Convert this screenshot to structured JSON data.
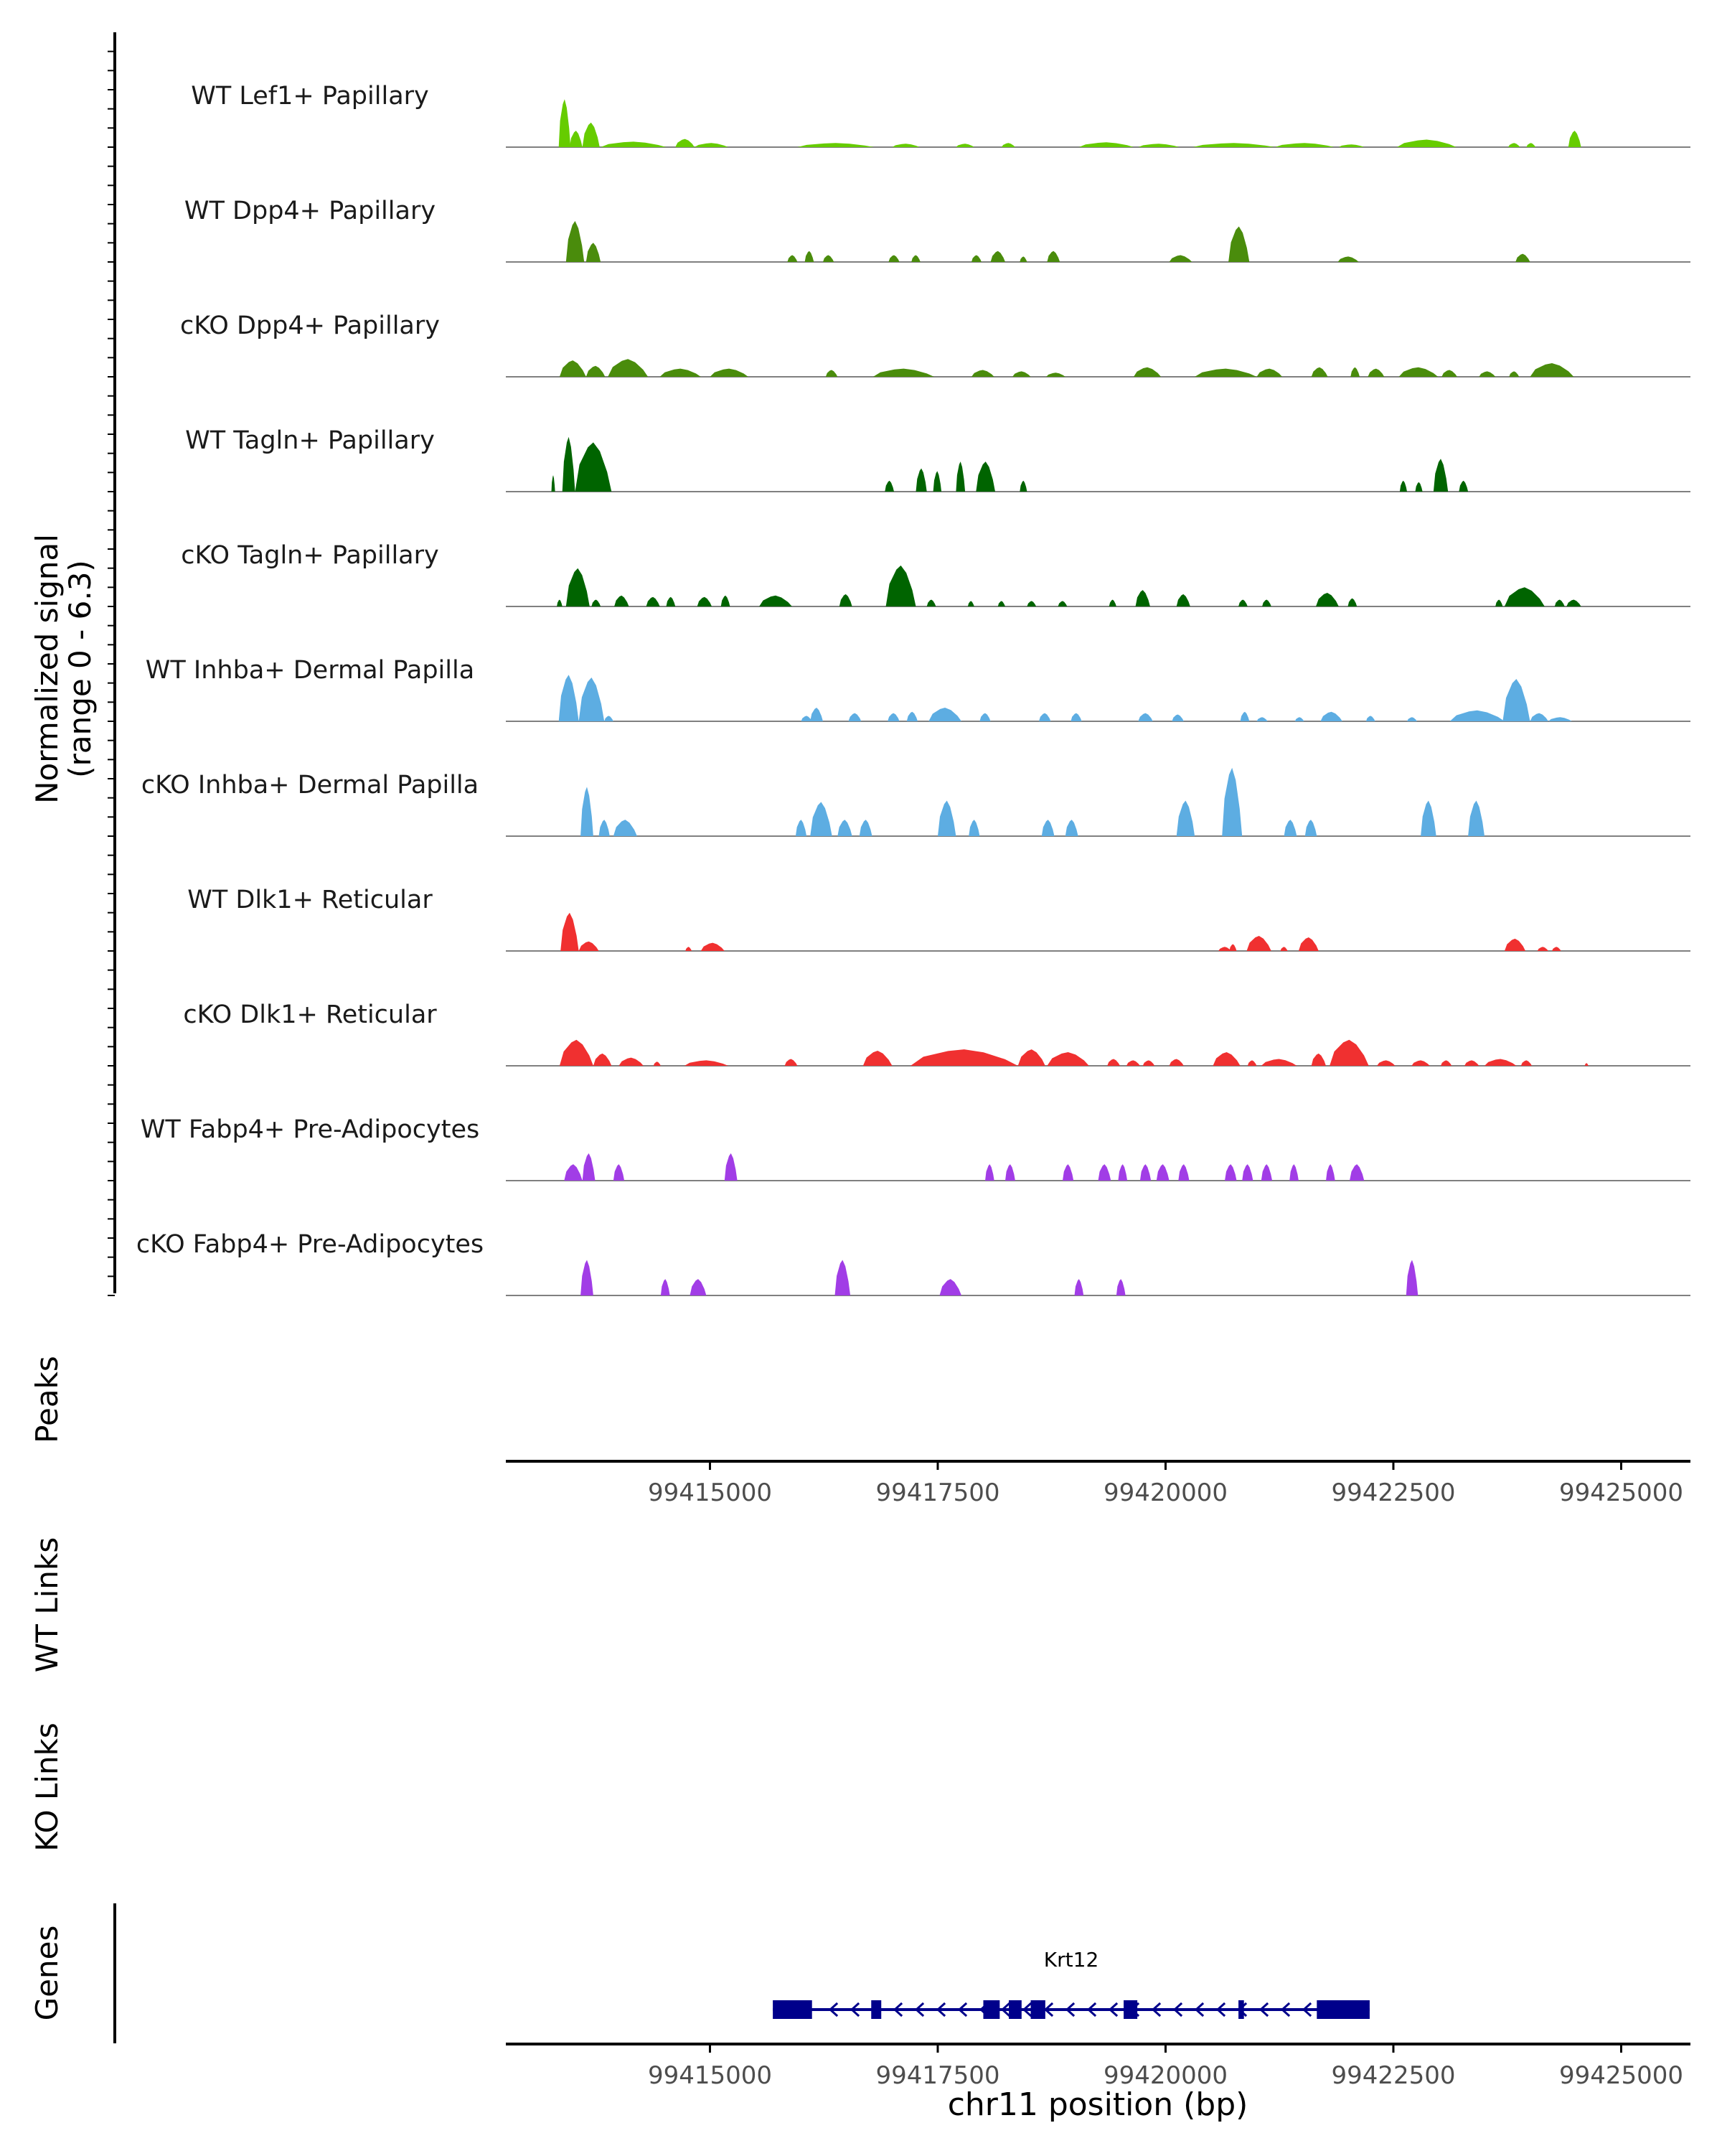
{
  "chart_data": {
    "type": "area",
    "title": "",
    "chromosome": "chr11",
    "xlabel": "chr11 position (bp)",
    "xlim": [
      99412760,
      99425760
    ],
    "x_ticks": [
      "99415000",
      "99417500",
      "99420000",
      "99422500",
      "99425000"
    ],
    "coverage_ylabel": "Normalized signal",
    "coverage_ylabel_range": "(range 0 - 6.3)",
    "ylim": [
      0,
      6.3
    ],
    "tracks": [
      {
        "name": "WT Lef1+ Papillary",
        "color": "#66cc00",
        "peaks": [
          [
            99413340,
            99413470,
            3.5
          ],
          [
            99413460,
            99413600,
            1.2
          ],
          [
            99413600,
            99413790,
            1.8
          ],
          [
            99413800,
            99414520,
            0.4
          ],
          [
            99414620,
            99414830,
            0.6
          ],
          [
            99414830,
            99415200,
            0.3
          ],
          [
            99415960,
            99416800,
            0.3
          ],
          [
            99417000,
            99417300,
            0.25
          ],
          [
            99417700,
            99417900,
            0.25
          ],
          [
            99418200,
            99418350,
            0.3
          ],
          [
            99419050,
            99419650,
            0.35
          ],
          [
            99419700,
            99420150,
            0.25
          ],
          [
            99420300,
            99421200,
            0.3
          ],
          [
            99421200,
            99421850,
            0.3
          ],
          [
            99421900,
            99422180,
            0.2
          ],
          [
            99422540,
            99423190,
            0.55
          ],
          [
            99423760,
            99423890,
            0.3
          ],
          [
            99423960,
            99424060,
            0.3
          ],
          [
            99424420,
            99424560,
            1.2
          ]
        ]
      },
      {
        "name": "WT Dpp4+ Papillary",
        "color": "#4a8c0c",
        "peaks": [
          [
            99413420,
            99413620,
            3.0
          ],
          [
            99413640,
            99413800,
            1.4
          ],
          [
            99415850,
            99415960,
            0.5
          ],
          [
            99416040,
            99416140,
            0.8
          ],
          [
            99416240,
            99416360,
            0.5
          ],
          [
            99416960,
            99417080,
            0.5
          ],
          [
            99417210,
            99417310,
            0.5
          ],
          [
            99417870,
            99417980,
            0.5
          ],
          [
            99418080,
            99418240,
            0.8
          ],
          [
            99418400,
            99418480,
            0.4
          ],
          [
            99418700,
            99418840,
            0.8
          ],
          [
            99420040,
            99420290,
            0.5
          ],
          [
            99420690,
            99420920,
            2.6
          ],
          [
            99421890,
            99422120,
            0.4
          ],
          [
            99423840,
            99424000,
            0.6
          ]
        ]
      },
      {
        "name": "cKO Dpp4+ Papillary",
        "color": "#4a8c0c",
        "peaks": [
          [
            99413350,
            99413640,
            1.2
          ],
          [
            99413640,
            99413850,
            0.8
          ],
          [
            99413880,
            99414320,
            1.3
          ],
          [
            99414450,
            99414900,
            0.6
          ],
          [
            99415000,
            99415420,
            0.6
          ],
          [
            99416270,
            99416400,
            0.5
          ],
          [
            99416790,
            99417460,
            0.6
          ],
          [
            99417870,
            99418120,
            0.5
          ],
          [
            99418320,
            99418520,
            0.4
          ],
          [
            99418690,
            99418900,
            0.3
          ],
          [
            99419650,
            99419950,
            0.7
          ],
          [
            99420320,
            99421000,
            0.6
          ],
          [
            99421000,
            99421280,
            0.6
          ],
          [
            99421600,
            99421780,
            0.7
          ],
          [
            99422030,
            99422130,
            0.7
          ],
          [
            99422220,
            99422400,
            0.6
          ],
          [
            99422560,
            99422990,
            0.7
          ],
          [
            99423030,
            99423200,
            0.5
          ],
          [
            99423440,
            99423620,
            0.4
          ],
          [
            99423770,
            99423880,
            0.4
          ],
          [
            99424000,
            99424480,
            1.0
          ]
        ]
      },
      {
        "name": "WT Tagln+ Papillary",
        "color": "#006400",
        "peaks": [
          [
            99413260,
            99413300,
            1.2
          ],
          [
            99413380,
            99413520,
            4.0
          ],
          [
            99413520,
            99413920,
            3.6
          ],
          [
            99416920,
            99417020,
            0.8
          ],
          [
            99417260,
            99417380,
            1.7
          ],
          [
            99417450,
            99417540,
            1.5
          ],
          [
            99417700,
            99417800,
            2.2
          ],
          [
            99417920,
            99418130,
            2.2
          ],
          [
            99418400,
            99418480,
            0.8
          ],
          [
            99422570,
            99422650,
            0.8
          ],
          [
            99422740,
            99422820,
            0.7
          ],
          [
            99422940,
            99423100,
            2.4
          ],
          [
            99423220,
            99423320,
            0.8
          ]
        ]
      },
      {
        "name": "cKO Tagln+ Papillary",
        "color": "#006400",
        "peaks": [
          [
            99413320,
            99413380,
            0.5
          ],
          [
            99413420,
            99413680,
            2.8
          ],
          [
            99413700,
            99413800,
            0.5
          ],
          [
            99413950,
            99414110,
            0.8
          ],
          [
            99414300,
            99414450,
            0.7
          ],
          [
            99414520,
            99414620,
            0.7
          ],
          [
            99414860,
            99415020,
            0.7
          ],
          [
            99415120,
            99415220,
            0.8
          ],
          [
            99415540,
            99415900,
            0.8
          ],
          [
            99416420,
            99416560,
            0.9
          ],
          [
            99416930,
            99417260,
            3.0
          ],
          [
            99417380,
            99417480,
            0.5
          ],
          [
            99417830,
            99417900,
            0.4
          ],
          [
            99418160,
            99418240,
            0.4
          ],
          [
            99418480,
            99418580,
            0.4
          ],
          [
            99418820,
            99418920,
            0.4
          ],
          [
            99419380,
            99419460,
            0.5
          ],
          [
            99419670,
            99419830,
            1.2
          ],
          [
            99420120,
            99420270,
            0.9
          ],
          [
            99420800,
            99420900,
            0.5
          ],
          [
            99421060,
            99421160,
            0.5
          ],
          [
            99421650,
            99421900,
            1.0
          ],
          [
            99422000,
            99422100,
            0.6
          ],
          [
            99423620,
            99423700,
            0.5
          ],
          [
            99423720,
            99424160,
            1.4
          ],
          [
            99424270,
            99424380,
            0.5
          ],
          [
            99424400,
            99424560,
            0.5
          ]
        ]
      },
      {
        "name": "WT Inhba+ Dermal Papilla",
        "color": "#5dade2",
        "peaks": [
          [
            99413340,
            99413560,
            3.4
          ],
          [
            99413560,
            99413840,
            3.2
          ],
          [
            99413840,
            99413940,
            0.4
          ],
          [
            99416000,
            99416120,
            0.4
          ],
          [
            99416100,
            99416240,
            1.0
          ],
          [
            99416520,
            99416660,
            0.6
          ],
          [
            99416950,
            99417080,
            0.6
          ],
          [
            99417160,
            99417280,
            0.7
          ],
          [
            99417400,
            99417760,
            1.0
          ],
          [
            99417960,
            99418080,
            0.6
          ],
          [
            99418610,
            99418740,
            0.6
          ],
          [
            99418960,
            99419080,
            0.6
          ],
          [
            99419700,
            99419860,
            0.6
          ],
          [
            99420070,
            99420200,
            0.5
          ],
          [
            99420820,
            99420920,
            0.7
          ],
          [
            99421000,
            99421120,
            0.3
          ],
          [
            99421420,
            99421520,
            0.3
          ],
          [
            99421700,
            99421940,
            0.7
          ],
          [
            99422200,
            99422300,
            0.4
          ],
          [
            99422650,
            99422760,
            0.3
          ],
          [
            99423120,
            99423720,
            0.8
          ],
          [
            99423700,
            99424000,
            3.1
          ],
          [
            99424000,
            99424200,
            0.6
          ],
          [
            99424200,
            99424460,
            0.3
          ]
        ]
      },
      {
        "name": "cKO Inhba+ Dermal Papilla",
        "color": "#5dade2",
        "peaks": [
          [
            99413580,
            99413720,
            3.6
          ],
          [
            99413780,
            99413900,
            1.2
          ],
          [
            99413940,
            99414200,
            1.2
          ],
          [
            99415940,
            99416060,
            1.2
          ],
          [
            99416100,
            99416340,
            2.5
          ],
          [
            99416400,
            99416560,
            1.2
          ],
          [
            99416640,
            99416780,
            1.2
          ],
          [
            99417500,
            99417700,
            2.6
          ],
          [
            99417840,
            99417960,
            1.2
          ],
          [
            99418640,
            99418780,
            1.2
          ],
          [
            99418900,
            99419040,
            1.2
          ],
          [
            99420120,
            99420320,
            2.6
          ],
          [
            99420620,
            99420840,
            5.0
          ],
          [
            99421300,
            99421440,
            1.2
          ],
          [
            99421530,
            99421660,
            1.2
          ],
          [
            99422800,
            99422970,
            2.6
          ],
          [
            99423320,
            99423500,
            2.6
          ]
        ]
      },
      {
        "name": "WT Dlk1+ Reticular",
        "color": "#f03030",
        "peaks": [
          [
            99413360,
            99413560,
            2.8
          ],
          [
            99413560,
            99413780,
            0.7
          ],
          [
            99414730,
            99414800,
            0.3
          ],
          [
            99414900,
            99415160,
            0.6
          ],
          [
            99420580,
            99420720,
            0.3
          ],
          [
            99420700,
            99420780,
            0.5
          ],
          [
            99420890,
            99421160,
            1.1
          ],
          [
            99421260,
            99421340,
            0.3
          ],
          [
            99421460,
            99421680,
            1.0
          ],
          [
            99423720,
            99423950,
            0.9
          ],
          [
            99424080,
            99424200,
            0.3
          ],
          [
            99424240,
            99424340,
            0.3
          ]
        ]
      },
      {
        "name": "cKO Dlk1+ Reticular",
        "color": "#f03030",
        "peaks": [
          [
            99413350,
            99413720,
            1.9
          ],
          [
            99413720,
            99413920,
            0.9
          ],
          [
            99414000,
            99414270,
            0.6
          ],
          [
            99414380,
            99414460,
            0.3
          ],
          [
            99414720,
            99415200,
            0.4
          ],
          [
            99415820,
            99415960,
            0.5
          ],
          [
            99416680,
            99417000,
            1.1
          ],
          [
            99417200,
            99418380,
            1.2
          ],
          [
            99418380,
            99418680,
            1.2
          ],
          [
            99418700,
            99419160,
            1.0
          ],
          [
            99419360,
            99419500,
            0.5
          ],
          [
            99419570,
            99419720,
            0.4
          ],
          [
            99419750,
            99419880,
            0.4
          ],
          [
            99420040,
            99420200,
            0.5
          ],
          [
            99420520,
            99420820,
            1.0
          ],
          [
            99420900,
            99421000,
            0.4
          ],
          [
            99421050,
            99421440,
            0.5
          ],
          [
            99421600,
            99421760,
            0.9
          ],
          [
            99421800,
            99422230,
            1.9
          ],
          [
            99422320,
            99422520,
            0.4
          ],
          [
            99422700,
            99422900,
            0.4
          ],
          [
            99423020,
            99423140,
            0.4
          ],
          [
            99423280,
            99423440,
            0.4
          ],
          [
            99423500,
            99423850,
            0.5
          ],
          [
            99423900,
            99424020,
            0.4
          ],
          [
            99424600,
            99424640,
            0.2
          ]
        ]
      },
      {
        "name": "WT Fabp4+ Pre-Adipocytes",
        "color": "#a13de6",
        "peaks": [
          [
            99413400,
            99413600,
            1.2
          ],
          [
            99413600,
            99413740,
            2.0
          ],
          [
            99413940,
            99414060,
            1.2
          ],
          [
            99415160,
            99415300,
            2.0
          ],
          [
            99418020,
            99418120,
            1.2
          ],
          [
            99418240,
            99418350,
            1.2
          ],
          [
            99418870,
            99418990,
            1.2
          ],
          [
            99419260,
            99419400,
            1.2
          ],
          [
            99419480,
            99419580,
            1.2
          ],
          [
            99419720,
            99419840,
            1.2
          ],
          [
            99419900,
            99420040,
            1.2
          ],
          [
            99420140,
            99420260,
            1.2
          ],
          [
            99420650,
            99420780,
            1.2
          ],
          [
            99420840,
            99420960,
            1.2
          ],
          [
            99421050,
            99421170,
            1.2
          ],
          [
            99421360,
            99421460,
            1.2
          ],
          [
            99421760,
            99421860,
            1.2
          ],
          [
            99422020,
            99422180,
            1.2
          ]
        ]
      },
      {
        "name": "cKO Fabp4+ Pre-Adipocytes",
        "color": "#a13de6",
        "peaks": [
          [
            99413580,
            99413720,
            2.6
          ],
          [
            99414460,
            99414560,
            1.2
          ],
          [
            99414780,
            99414960,
            1.2
          ],
          [
            99416370,
            99416540,
            2.6
          ],
          [
            99417520,
            99417760,
            1.2
          ],
          [
            99419000,
            99419100,
            1.2
          ],
          [
            99419460,
            99419560,
            1.2
          ],
          [
            99422640,
            99422770,
            2.6
          ]
        ]
      }
    ],
    "panel_labels": {
      "peaks": "Peaks",
      "wt_links": "WT Links",
      "ko_links": "KO Links",
      "genes": "Genes"
    },
    "gene": {
      "name": "Krt12",
      "strand": "-",
      "start": 99415690,
      "end": 99422240,
      "color": "#00008b",
      "exons": [
        [
          99415690,
          99416120
        ],
        [
          99416770,
          99416880
        ],
        [
          99418000,
          99418180
        ],
        [
          99418280,
          99418420
        ],
        [
          99418520,
          99418680
        ],
        [
          99419540,
          99419690
        ],
        [
          99420800,
          99420860
        ],
        [
          99421660,
          99422240
        ]
      ]
    }
  }
}
